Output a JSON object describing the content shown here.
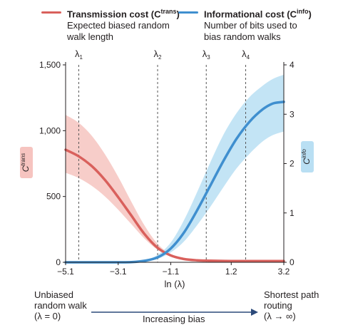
{
  "legend": {
    "trans": {
      "title_prefix": "Transmission cost (C",
      "title_sup": "trans",
      "title_suffix": ")",
      "line1": "Expected biased random",
      "line2": "walk length",
      "color": "#d9605c"
    },
    "info": {
      "title_prefix": "Informational cost (C",
      "title_sup": "info",
      "title_suffix": ")",
      "line1": "Number of bits used to",
      "line2": "bias random walks",
      "color": "#3f8fcf"
    }
  },
  "bottom": {
    "left_line1": "Unbiased",
    "left_line2": "random walk",
    "left_line3": "(λ = 0)",
    "center": "Increasing bias",
    "right_line1": "Shortest path",
    "right_line2": "routing",
    "right_line3": "(λ → ∞)"
  },
  "chart_data": {
    "type": "line",
    "xlabel": "ln (λ)",
    "x_ticks": [
      "−5.1",
      "−3.1",
      "−1.1",
      "1.2",
      "3.2"
    ],
    "x_tick_values": [
      -5.1,
      -3.1,
      -1.1,
      1.2,
      3.2
    ],
    "xlim": [
      -5.1,
      3.2
    ],
    "left_axis": {
      "label_base": "C",
      "label_sup": "trans",
      "ticks": [
        "0",
        "500",
        "1,000",
        "1,500"
      ],
      "tick_values": [
        0,
        500,
        1000,
        1500
      ],
      "ylim": [
        0,
        1500
      ],
      "badge_color": "#f6c4c0"
    },
    "right_axis": {
      "label_base": "C",
      "label_sup": "info",
      "ticks": [
        "0",
        "1",
        "2",
        "3",
        "4"
      ],
      "tick_values": [
        0,
        1,
        2,
        3,
        4
      ],
      "ylim": [
        0,
        4
      ],
      "badge_color": "#b9dff3"
    },
    "lambda_markers": [
      {
        "label": "λ",
        "sub": "1",
        "x": -4.6
      },
      {
        "label": "λ",
        "sub": "2",
        "x": -1.6
      },
      {
        "label": "λ",
        "sub": "3",
        "x": 0.25
      },
      {
        "label": "λ",
        "sub": "4",
        "x": 1.75
      }
    ],
    "series": [
      {
        "axis": "left",
        "color": "#d9605c",
        "band_color": "#f6c4c0",
        "x": [
          -5.1,
          -4.6,
          -4.1,
          -3.6,
          -3.1,
          -2.6,
          -2.1,
          -1.6,
          -1.1,
          -0.6,
          -0.1,
          0.4,
          1.2,
          2.0,
          2.6,
          3.2
        ],
        "y": [
          855,
          805,
          730,
          625,
          495,
          355,
          215,
          110,
          52,
          25,
          15,
          12,
          10,
          10,
          10,
          10
        ],
        "lower": [
          680,
          640,
          580,
          500,
          400,
          290,
          180,
          95,
          45,
          20,
          12,
          10,
          8,
          8,
          8,
          8
        ],
        "upper": [
          1120,
          1060,
          960,
          820,
          650,
          460,
          280,
          140,
          62,
          30,
          18,
          14,
          12,
          12,
          12,
          12
        ]
      },
      {
        "axis": "right",
        "color": "#3f8fcf",
        "band_color": "#b9dff3",
        "x": [
          -5.1,
          -4.1,
          -3.1,
          -2.6,
          -2.1,
          -1.6,
          -1.1,
          -0.6,
          -0.1,
          0.4,
          0.9,
          1.4,
          1.9,
          2.4,
          2.8,
          3.2
        ],
        "y": [
          0,
          0,
          0,
          0.003,
          0.03,
          0.1,
          0.28,
          0.6,
          1.05,
          1.55,
          2.05,
          2.5,
          2.85,
          3.1,
          3.22,
          3.25
        ],
        "lower": [
          0,
          0,
          0,
          0.002,
          0.02,
          0.07,
          0.2,
          0.42,
          0.75,
          1.12,
          1.52,
          1.9,
          2.2,
          2.45,
          2.58,
          2.65
        ],
        "upper": [
          0,
          0,
          0,
          0.005,
          0.045,
          0.15,
          0.4,
          0.85,
          1.42,
          2.02,
          2.58,
          3.02,
          3.35,
          3.58,
          3.72,
          3.8
        ]
      }
    ]
  }
}
